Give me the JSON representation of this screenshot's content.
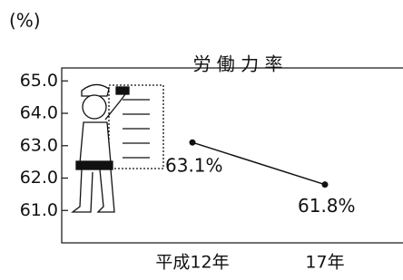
{
  "chart_data": {
    "type": "line",
    "title": "労 働 力 率",
    "y_label": "(%)",
    "categories": [
      "平成12年",
      "17年"
    ],
    "series": [
      {
        "values": [
          63.1,
          61.8
        ],
        "value_labels": [
          "63.1%",
          "61.8%"
        ],
        "color": "#111111"
      }
    ],
    "ylim": [
      60,
      65.4
    ],
    "yticks": [
      {
        "value": 61,
        "label": "61.0"
      },
      {
        "value": 62,
        "label": "62.0"
      },
      {
        "value": 63,
        "label": "63.0"
      },
      {
        "value": 64,
        "label": "64.0"
      },
      {
        "value": 65,
        "label": "65.0"
      }
    ]
  }
}
